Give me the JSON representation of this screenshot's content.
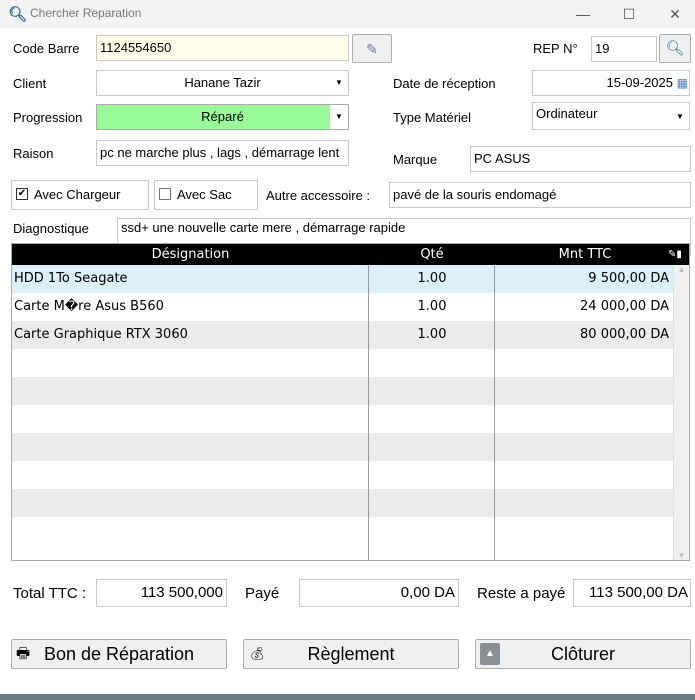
{
  "window": {
    "title": "Chercher Reparation",
    "minimize": "—",
    "maximize": "☐",
    "close": "✕"
  },
  "form": {
    "code_barre_label": "Code Barre",
    "code_barre": "1124554650",
    "rep_label": "REP N°",
    "rep": "19",
    "client_label": "Client",
    "client": "Hanane Tazir",
    "date_label": "Date de réception",
    "date": "15-09-2025",
    "progression_label": "Progression",
    "progression": "Réparé",
    "type_label": "Type Matériel",
    "type": "Ordinateur",
    "raison_label": "Raison",
    "raison": "pc ne marche plus , lags , démarrage lent",
    "marque_label": "Marque",
    "marque": "PC ASUS",
    "chargeur_label": "Avec Chargeur",
    "chargeur_checked": true,
    "sac_label": "Avec Sac",
    "sac_checked": false,
    "autre_label": "Autre accessoire :",
    "autre": "pavé de la souris endomagé",
    "diagnostique_label": "Diagnostique",
    "diagnostique": "ssd+ une nouvelle carte mere , démarrage rapide"
  },
  "table": {
    "columns": [
      "Désignation",
      "Qté",
      "Mnt TTC"
    ],
    "rows": [
      {
        "designation": "HDD 1To Seagate",
        "qte": "1.00",
        "mnt": "9 500,00 DA"
      },
      {
        "designation": "Carte M�re Asus B560",
        "qte": "1.00",
        "mnt": "24 000,00 DA"
      },
      {
        "designation": "Carte Graphique RTX 3060",
        "qte": "1.00",
        "mnt": "80 000,00 DA"
      }
    ]
  },
  "totals": {
    "total_label": "Total TTC :",
    "total": "113 500,000",
    "paye_label": "Payé",
    "paye": "0,00 DA",
    "reste_label": "Reste a payé",
    "reste": "113 500,00 DA"
  },
  "buttons": {
    "bon": "Bon de Réparation",
    "reglement": "Règlement",
    "cloturer": "Clôturer"
  },
  "colors": {
    "progression_bg": "#98fb98",
    "barcode_bg": "#fffde7",
    "selected_row": "#dcf0fb",
    "header_bg": "#000000"
  }
}
